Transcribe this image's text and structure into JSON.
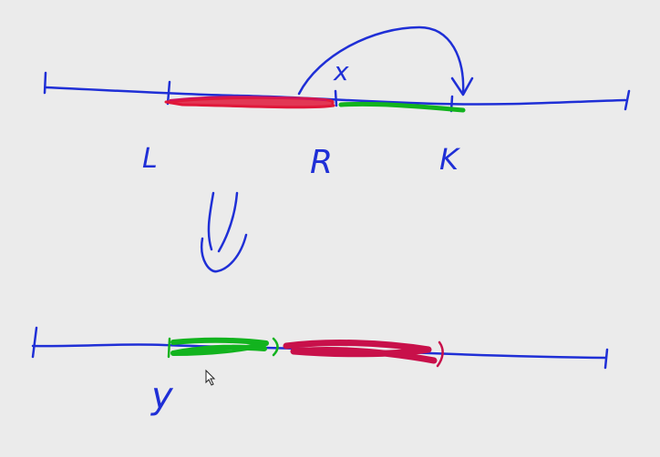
{
  "colors": {
    "background": "#ebebeb",
    "ink_blue": "#1f2fd6",
    "ink_red": "#e0183a",
    "ink_crimson": "#c8104a",
    "ink_green": "#12b31e"
  },
  "labels": {
    "L": "L",
    "R": "R",
    "K": "K",
    "x": "x",
    "y": "y"
  },
  "icons": {
    "cursor": "mouse-pointer-icon",
    "transform_arrow": "double-down-arrow-icon"
  }
}
